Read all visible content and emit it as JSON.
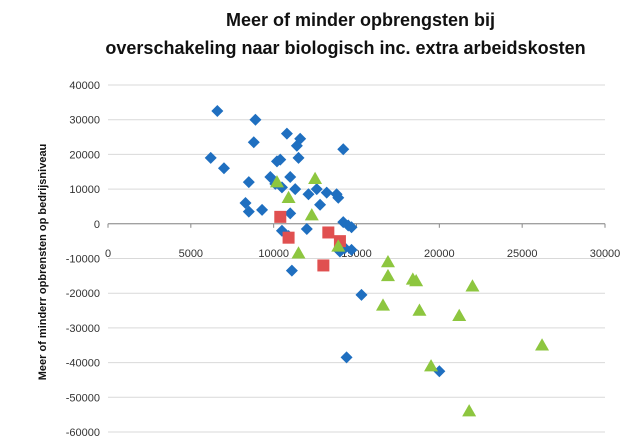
{
  "chart_data": {
    "type": "scatter",
    "title_line1": "Meer of minder opbrengsten  bij",
    "title_line2": "overschakeling naar biologisch inc.  extra arbeidskosten",
    "xlabel": "",
    "ylabel": "Meer of minderr opbrensten op bedrijsniveau",
    "xlim": [
      0,
      30000
    ],
    "ylim": [
      -60000,
      40000
    ],
    "xticks": [
      "0",
      "5000",
      "10000",
      "15000",
      "20000",
      "25000",
      "30000"
    ],
    "yticks": [
      "40000",
      "30000",
      "20000",
      "10000",
      "0",
      "-10000",
      "-20000",
      "-30000",
      "-40000",
      "-50000",
      "-60000"
    ],
    "grid": "horizontal",
    "series": [
      {
        "marker": "diamond",
        "color": "#1f6fc0",
        "points": [
          [
            6600,
            32500
          ],
          [
            6200,
            19000
          ],
          [
            7000,
            16000
          ],
          [
            8900,
            30000
          ],
          [
            8800,
            23500
          ],
          [
            8500,
            12000
          ],
          [
            8300,
            6000
          ],
          [
            8500,
            3500
          ],
          [
            9300,
            4000
          ],
          [
            9800,
            13500
          ],
          [
            10200,
            18000
          ],
          [
            10400,
            18500
          ],
          [
            10100,
            11500
          ],
          [
            10500,
            10500
          ],
          [
            10800,
            26000
          ],
          [
            11400,
            22500
          ],
          [
            11600,
            24500
          ],
          [
            11500,
            19000
          ],
          [
            11000,
            13500
          ],
          [
            11300,
            10000
          ],
          [
            11000,
            3000
          ],
          [
            10900,
            -3500
          ],
          [
            10500,
            -2000
          ],
          [
            11100,
            -13500
          ],
          [
            12000,
            -1500
          ],
          [
            12100,
            8500
          ],
          [
            12600,
            10000
          ],
          [
            12800,
            5500
          ],
          [
            13200,
            9000
          ],
          [
            13800,
            8500
          ],
          [
            13900,
            7500
          ],
          [
            14200,
            21500
          ],
          [
            14200,
            500
          ],
          [
            14500,
            -500
          ],
          [
            14700,
            -1000
          ],
          [
            14300,
            -7000
          ],
          [
            14000,
            -8000
          ],
          [
            14700,
            -7500
          ],
          [
            15300,
            -20500
          ],
          [
            14400,
            -38500
          ],
          [
            20000,
            -42500
          ]
        ]
      },
      {
        "marker": "square",
        "color": "#e05050",
        "points": [
          [
            10400,
            2000
          ],
          [
            10900,
            -4000
          ],
          [
            13000,
            -12000
          ],
          [
            13300,
            -2500
          ],
          [
            14000,
            -5000
          ]
        ]
      },
      {
        "marker": "triangle",
        "color": "#8dc63f",
        "points": [
          [
            10200,
            12000
          ],
          [
            10900,
            7500
          ],
          [
            11500,
            -8500
          ],
          [
            12300,
            2500
          ],
          [
            12500,
            13000
          ],
          [
            13900,
            -6500
          ],
          [
            16900,
            -11000
          ],
          [
            16900,
            -15000
          ],
          [
            16600,
            -23500
          ],
          [
            18400,
            -16000
          ],
          [
            18600,
            -16500
          ],
          [
            18800,
            -25000
          ],
          [
            19500,
            -41000
          ],
          [
            21200,
            -26500
          ],
          [
            22000,
            -18000
          ],
          [
            21800,
            -54000
          ],
          [
            26200,
            -35000
          ]
        ]
      }
    ]
  }
}
